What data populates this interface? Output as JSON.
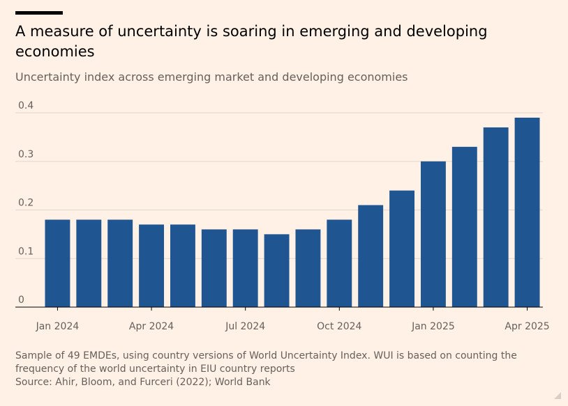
{
  "header": {
    "title": "A measure of uncertainty is soaring in emerging and developing economies",
    "subtitle": "Uncertainty index across emerging market and developing economies"
  },
  "footer": {
    "note": "Sample of 49 EMDEs, using country versions of World Uncertainty Index. WUI is based on counting the frequency of the world uncertainty in EIU country reports",
    "source": "Source: Ahir, Bloom, and Furceri (2022); World Bank"
  },
  "colors": {
    "bar": "#1f5591",
    "gridline": "#e0d7ce",
    "baseline": "#000000",
    "background": "#fff1e5"
  },
  "chart_data": {
    "type": "bar",
    "title": "A measure of uncertainty is soaring in emerging and developing economies",
    "subtitle": "Uncertainty index across emerging market and developing economies",
    "xlabel": "",
    "ylabel": "",
    "categories": [
      "Jan 2024",
      "Feb 2024",
      "Mar 2024",
      "Apr 2024",
      "May 2024",
      "Jun 2024",
      "Jul 2024",
      "Aug 2024",
      "Sep 2024",
      "Oct 2024",
      "Nov 2024",
      "Dec 2024",
      "Jan 2025",
      "Feb 2025",
      "Mar 2025",
      "Apr 2025"
    ],
    "values": [
      0.18,
      0.18,
      0.18,
      0.17,
      0.17,
      0.16,
      0.16,
      0.15,
      0.16,
      0.18,
      0.21,
      0.24,
      0.3,
      0.33,
      0.37,
      0.39
    ],
    "x_tick_labels": [
      {
        "index": 0,
        "label": "Jan 2024"
      },
      {
        "index": 3,
        "label": "Apr 2024"
      },
      {
        "index": 6,
        "label": "Jul 2024"
      },
      {
        "index": 9,
        "label": "Oct 2024"
      },
      {
        "index": 12,
        "label": "Jan 2025"
      },
      {
        "index": 15,
        "label": "Apr 2025"
      }
    ],
    "y_ticks": [
      0,
      0.1,
      0.2,
      0.3,
      0.4
    ],
    "y_tick_labels": [
      "0",
      "0.1",
      "0.2",
      "0.3",
      "0.4"
    ],
    "ylim": [
      0,
      0.4
    ],
    "grid": true,
    "legend": "none"
  }
}
